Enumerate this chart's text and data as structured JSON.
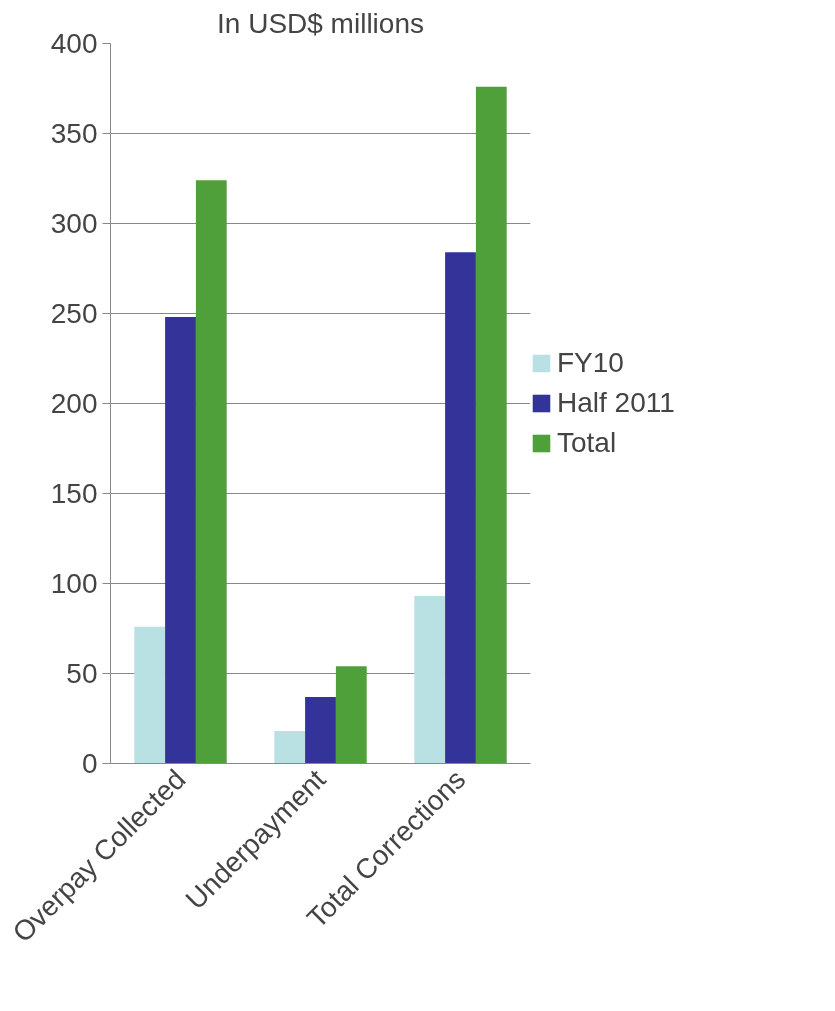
{
  "chart_data": {
    "type": "bar",
    "title": "In USD$ millions",
    "categories": [
      "Overpay Collected",
      "Underpayment",
      "Total Corrections"
    ],
    "series": [
      {
        "name": "FY10",
        "color": "#b9e0e3",
        "values": [
          76,
          18,
          93
        ]
      },
      {
        "name": "Half 2011",
        "color": "#343399",
        "values": [
          248,
          37,
          284
        ]
      },
      {
        "name": "Total",
        "color": "#4fa03a",
        "values": [
          324,
          54,
          376
        ]
      }
    ],
    "ylim": [
      0,
      400
    ],
    "yticks": [
      0,
      50,
      100,
      150,
      200,
      250,
      300,
      350,
      400
    ],
    "grid": "y",
    "legend": "right"
  }
}
